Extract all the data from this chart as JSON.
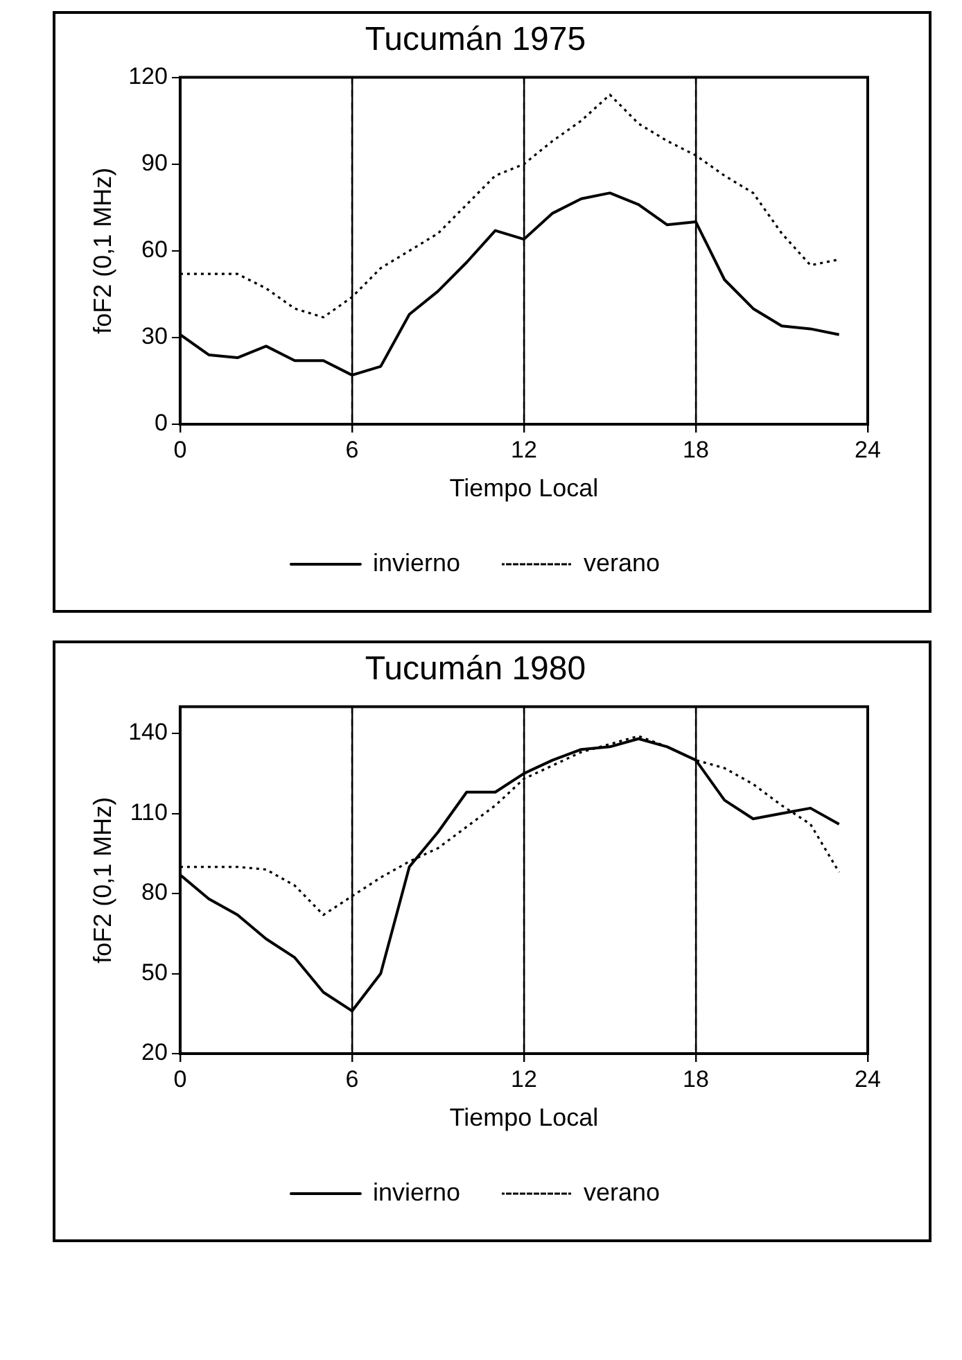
{
  "chart_data": [
    {
      "type": "line",
      "title": "Tucumán 1975",
      "xlabel": "Tiempo Local",
      "ylabel": "foF2 (0,1 MHz)",
      "x": [
        0,
        1,
        2,
        3,
        4,
        5,
        6,
        7,
        8,
        9,
        10,
        11,
        12,
        13,
        14,
        15,
        16,
        17,
        18,
        19,
        20,
        21,
        22,
        23
      ],
      "xlim": [
        0,
        24
      ],
      "xticks": [
        0,
        6,
        12,
        18,
        24
      ],
      "ylim": [
        0,
        120
      ],
      "yticks": [
        0,
        30,
        60,
        90,
        120
      ],
      "grid": "x",
      "legend": "bottom",
      "marker": "none",
      "series": [
        {
          "name": "invierno",
          "color": "#000000",
          "line_style": "solid",
          "values": [
            31,
            24,
            23,
            27,
            22,
            22,
            17,
            20,
            38,
            46,
            56,
            67,
            64,
            73,
            78,
            80,
            76,
            69,
            70,
            50,
            40,
            34,
            33,
            31
          ]
        },
        {
          "name": "verano",
          "color": "#000000",
          "line_style": "dotted",
          "values": [
            52,
            52,
            52,
            47,
            40,
            37,
            44,
            54,
            60,
            66,
            76,
            86,
            90,
            98,
            105,
            114,
            104,
            98,
            93,
            86,
            80,
            66,
            55,
            57
          ]
        }
      ]
    },
    {
      "type": "line",
      "title": "Tucumán 1980",
      "xlabel": "Tiempo Local",
      "ylabel": "foF2 (0,1 MHz)",
      "x": [
        0,
        1,
        2,
        3,
        4,
        5,
        6,
        7,
        8,
        9,
        10,
        11,
        12,
        13,
        14,
        15,
        16,
        17,
        18,
        19,
        20,
        21,
        22,
        23
      ],
      "xlim": [
        0,
        24
      ],
      "xticks": [
        0,
        6,
        12,
        18,
        24
      ],
      "ylim": [
        20,
        150
      ],
      "yticks": [
        20,
        50,
        80,
        110,
        140
      ],
      "grid": "x",
      "legend": "bottom",
      "marker": "none",
      "series": [
        {
          "name": "invierno",
          "color": "#000000",
          "line_style": "solid",
          "values": [
            87,
            78,
            72,
            63,
            56,
            43,
            36,
            50,
            90,
            103,
            118,
            118,
            125,
            130,
            134,
            135,
            138,
            135,
            130,
            115,
            108,
            110,
            112,
            106
          ]
        },
        {
          "name": "verano",
          "color": "#000000",
          "line_style": "dotted",
          "values": [
            90,
            90,
            90,
            89,
            83,
            72,
            79,
            86,
            92,
            97,
            105,
            113,
            123,
            128,
            133,
            136,
            139,
            135,
            130,
            127,
            121,
            113,
            106,
            88
          ]
        }
      ]
    }
  ]
}
